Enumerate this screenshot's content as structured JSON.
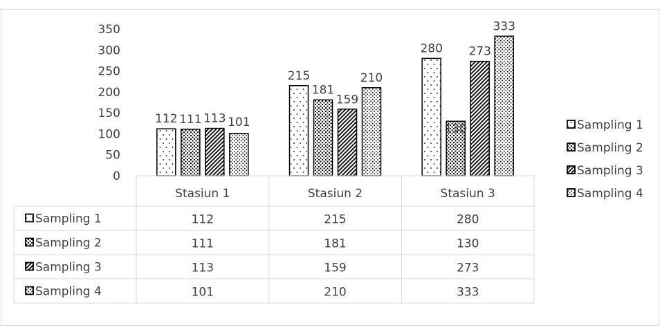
{
  "chart_data": {
    "type": "bar",
    "title": "",
    "xlabel": "",
    "ylabel": "",
    "ylim": [
      0,
      350
    ],
    "yticks": [
      0,
      50,
      100,
      150,
      200,
      250,
      300,
      350
    ],
    "grid": false,
    "legend_position": "right",
    "data_table": true,
    "categories": [
      "Stasiun 1",
      "Stasiun 2",
      "Stasiun 3"
    ],
    "series": [
      {
        "name": "Sampling 1",
        "values": [
          112,
          215,
          280
        ],
        "pattern": "sparse-dots"
      },
      {
        "name": "Sampling 2",
        "values": [
          111,
          181,
          130
        ],
        "pattern": "grid"
      },
      {
        "name": "Sampling 3",
        "values": [
          113,
          159,
          273
        ],
        "pattern": "diagonal-hatch"
      },
      {
        "name": "Sampling 4",
        "values": [
          101,
          210,
          333
        ],
        "pattern": "dense-dots"
      }
    ],
    "colors": {
      "stroke": "#000000",
      "text": "#404040",
      "axis": "#d9d9d9",
      "frame": "#d9d9d9"
    }
  }
}
